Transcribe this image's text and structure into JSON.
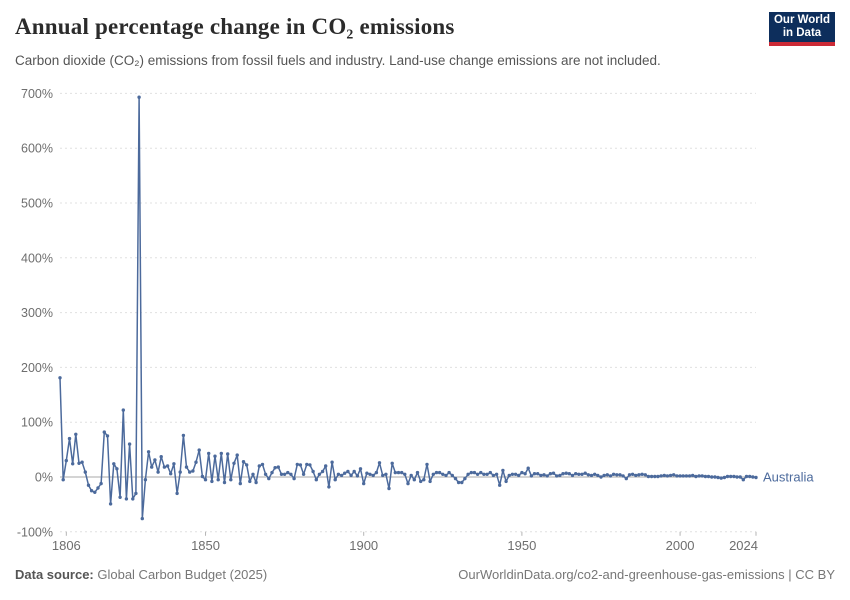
{
  "header": {
    "title": "Annual percentage change in CO₂ emissions",
    "subtitle": "Carbon dioxide (CO₂) emissions from fossil fuels and industry. Land-use change emissions are not included.",
    "logo_line1": "Our World",
    "logo_line2": "in Data"
  },
  "footer": {
    "source_label": "Data source:",
    "source_value": " Global Carbon Budget (2025)",
    "link": "OurWorldinData.org/co2-and-greenhouse-gas-emissions | CC BY"
  },
  "colors": {
    "series": "#4c6a9c",
    "grid": "#e0e0e0",
    "zero_line": "#a8a8a8",
    "axis_text": "#6e6e6e",
    "logo_bg": "#0d2e5c",
    "logo_bar": "#cc2a36"
  },
  "chart_data": {
    "type": "line",
    "title": "Annual percentage change in CO₂ emissions",
    "xlabel": "",
    "ylabel": "",
    "xlim": [
      1804,
      2024
    ],
    "ylim": [
      -100,
      700
    ],
    "grid": "dashed-horizontal",
    "legend_position": "right-of-line-end",
    "x_start": 1804,
    "x_ticks": [
      {
        "value": 1806,
        "label": "1806"
      },
      {
        "value": 1850,
        "label": "1850"
      },
      {
        "value": 1900,
        "label": "1900"
      },
      {
        "value": 1950,
        "label": "1950"
      },
      {
        "value": 2000,
        "label": "2000"
      },
      {
        "value": 2024,
        "label": "2024"
      }
    ],
    "y_ticks": [
      {
        "value": -100,
        "label": "-100%"
      },
      {
        "value": 0,
        "label": "0%"
      },
      {
        "value": 100,
        "label": "100%"
      },
      {
        "value": 200,
        "label": "200%"
      },
      {
        "value": 300,
        "label": "300%"
      },
      {
        "value": 400,
        "label": "400%"
      },
      {
        "value": 500,
        "label": "500%"
      },
      {
        "value": 600,
        "label": "600%"
      },
      {
        "value": 700,
        "label": "700%"
      }
    ],
    "series": [
      {
        "name": "Australia",
        "color": "#4c6a9c",
        "unit": "%",
        "values": [
          181,
          -5,
          30,
          70,
          24,
          78,
          25,
          27,
          9,
          -15,
          -25,
          -28,
          -20,
          -12,
          82,
          75,
          -49,
          24,
          15,
          -37,
          122,
          -40,
          60,
          -40,
          -30,
          693,
          -76,
          -5,
          46,
          18,
          31,
          9,
          37,
          18,
          20,
          6,
          24,
          -30,
          9,
          76,
          18,
          9,
          11,
          27,
          49,
          1,
          -5,
          43,
          -8,
          38,
          -5,
          43,
          -10,
          42,
          -5,
          25,
          40,
          -12,
          28,
          22,
          -8,
          5,
          -10,
          20,
          23,
          5,
          -3,
          8,
          17,
          18,
          5,
          5,
          8,
          5,
          -3,
          23,
          22,
          5,
          23,
          22,
          10,
          -5,
          5,
          10,
          20,
          -18,
          27,
          -5,
          5,
          3,
          7,
          10,
          3,
          10,
          2,
          15,
          -12,
          7,
          5,
          3,
          8,
          26,
          3,
          5,
          -21,
          25,
          8,
          8,
          8,
          5,
          -12,
          3,
          -5,
          8,
          -8,
          -5,
          23,
          -8,
          5,
          8,
          8,
          5,
          3,
          8,
          3,
          -3,
          -10,
          -10,
          -3,
          5,
          8,
          8,
          5,
          8,
          5,
          5,
          8,
          3,
          5,
          -15,
          12,
          -8,
          3,
          5,
          5,
          3,
          8,
          6,
          16,
          2,
          6,
          6,
          3,
          4,
          2,
          6,
          7,
          2,
          3,
          6,
          7,
          6,
          3,
          6,
          5,
          5,
          7,
          4,
          3,
          5,
          3,
          0,
          3,
          4,
          2,
          5,
          4,
          4,
          2,
          -3,
          4,
          5,
          3,
          4,
          5,
          4,
          1,
          1,
          1,
          1,
          2,
          3,
          2,
          3,
          4,
          2,
          2,
          2,
          2,
          2,
          3,
          1,
          2,
          2,
          1,
          1,
          0,
          0,
          -1,
          -2,
          -1,
          1,
          1,
          1,
          0,
          0,
          -5,
          1,
          1,
          0,
          -1
        ]
      }
    ]
  }
}
